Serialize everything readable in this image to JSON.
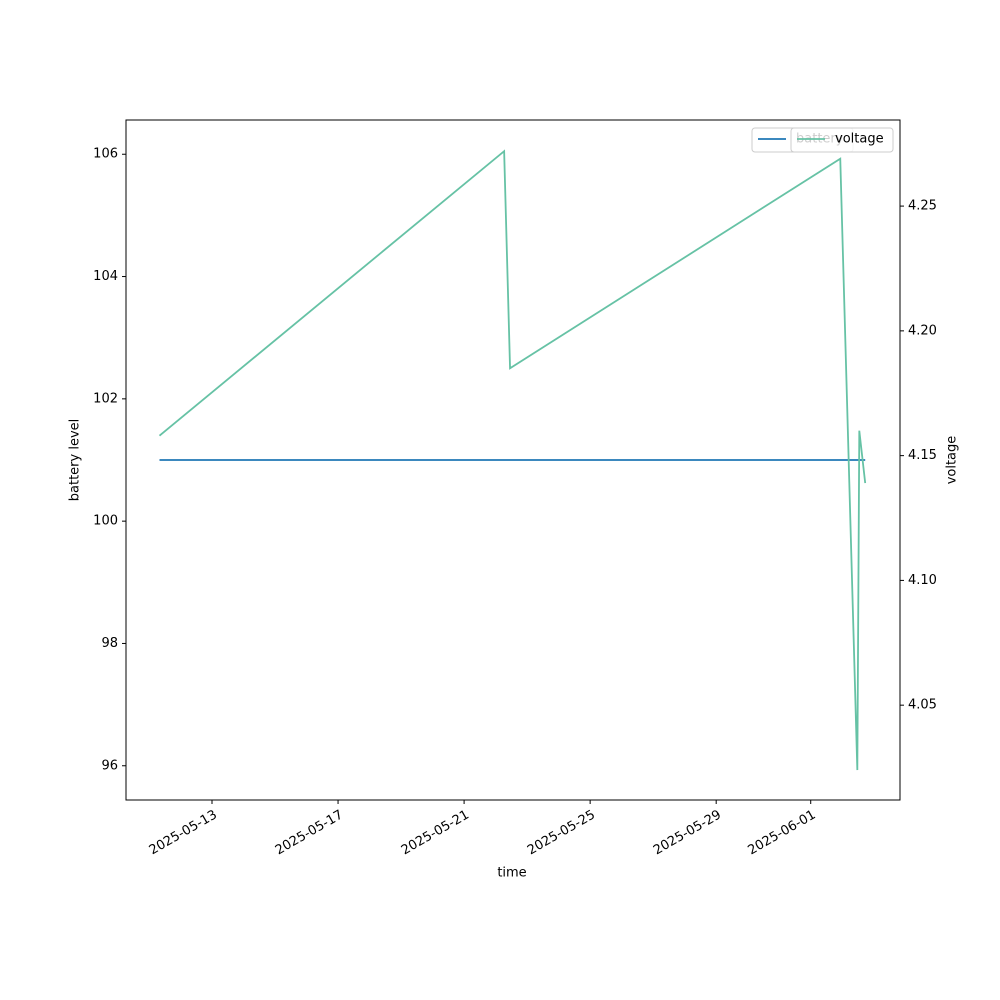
{
  "chart_data": {
    "type": "line",
    "xlabel": "time",
    "ylabel": "battery level",
    "y2label": "voltage",
    "xlim": [
      "2025-05-10T06:30",
      "2025-06-03T20:00"
    ],
    "xticks": [
      "2025-05-13",
      "2025-05-17",
      "2025-05-21",
      "2025-05-25",
      "2025-05-29",
      "2025-06-01"
    ],
    "ylim": [
      95.44,
      106.56
    ],
    "yticks": [
      96,
      98,
      100,
      102,
      104,
      106
    ],
    "y2lim": [
      4.012,
      4.2845
    ],
    "y2ticks": [
      4.05,
      {
        "value": 4.1,
        "label": "4.10"
      },
      4.15,
      {
        "value": 4.2,
        "label": "4.20"
      },
      4.25
    ],
    "legend": "upper right",
    "series": [
      {
        "name": "battery",
        "color": "#1f77b4",
        "axis": "y",
        "x": [
          "2025-05-11T08:00",
          "2025-06-02T17:30"
        ],
        "values": [
          101,
          101
        ]
      },
      {
        "name": "voltage",
        "color": "#66c2a5",
        "axis": "y2",
        "x": [
          "2025-05-11T08:00",
          "2025-05-22T06:30",
          "2025-05-22T11:00",
          "2025-06-01T22:30",
          "2025-06-02T11:30",
          "2025-06-02T13:00",
          "2025-06-02T17:30"
        ],
        "values": [
          4.158,
          4.272,
          4.185,
          4.269,
          4.024,
          4.16,
          4.139
        ]
      }
    ]
  }
}
